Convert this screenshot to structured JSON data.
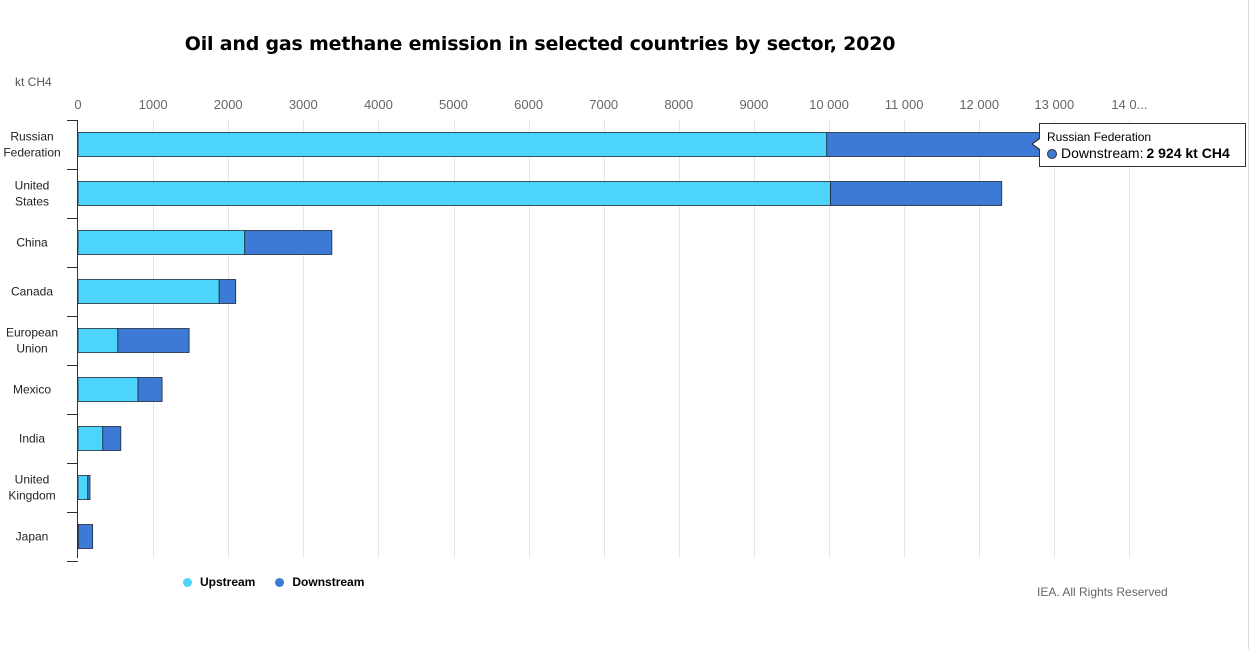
{
  "title": "Oil and gas methane emission in selected countries by sector, 2020",
  "unit_label": "kt CH4",
  "credits": "IEA. All Rights Reserved",
  "colors": {
    "upstream": "#4dd4fb",
    "downstream": "#3d7ad6",
    "grid": "#e6e6e6",
    "axis": "#333333"
  },
  "tooltip": {
    "header": "Russian Federation",
    "series": "Downstream:",
    "value": "2 924 kt CH4"
  },
  "chart_data": {
    "type": "bar",
    "orientation": "horizontal",
    "stacked": true,
    "title": "Oil and gas methane emission in selected countries by sector, 2020",
    "xlabel": "kt CH4",
    "ylabel": "",
    "xlim": [
      0,
      14000
    ],
    "x_ticks": [
      0,
      1000,
      2000,
      3000,
      4000,
      5000,
      6000,
      7000,
      8000,
      9000,
      10000,
      11000,
      12000,
      13000,
      14000
    ],
    "x_tick_labels": [
      "0",
      "1000",
      "2000",
      "3000",
      "4000",
      "5000",
      "6000",
      "7000",
      "8000",
      "9000",
      "10 000",
      "11 000",
      "12 000",
      "13 000",
      "14 0..."
    ],
    "categories": [
      [
        "Russian",
        "Federation"
      ],
      [
        "United",
        "States"
      ],
      [
        "China"
      ],
      [
        "Canada"
      ],
      [
        "European",
        "Union"
      ],
      [
        "Mexico"
      ],
      [
        "India"
      ],
      [
        "United",
        "Kingdom"
      ],
      [
        "Japan"
      ]
    ],
    "series": [
      {
        "name": "Upstream",
        "values": [
          9970,
          10020,
          2220,
          1880,
          530,
          800,
          330,
          130,
          5
        ]
      },
      {
        "name": "Downstream",
        "values": [
          2924,
          2280,
          1160,
          220,
          950,
          320,
          240,
          30,
          190
        ]
      }
    ],
    "grid": true,
    "legend_position": "bottom-left"
  }
}
